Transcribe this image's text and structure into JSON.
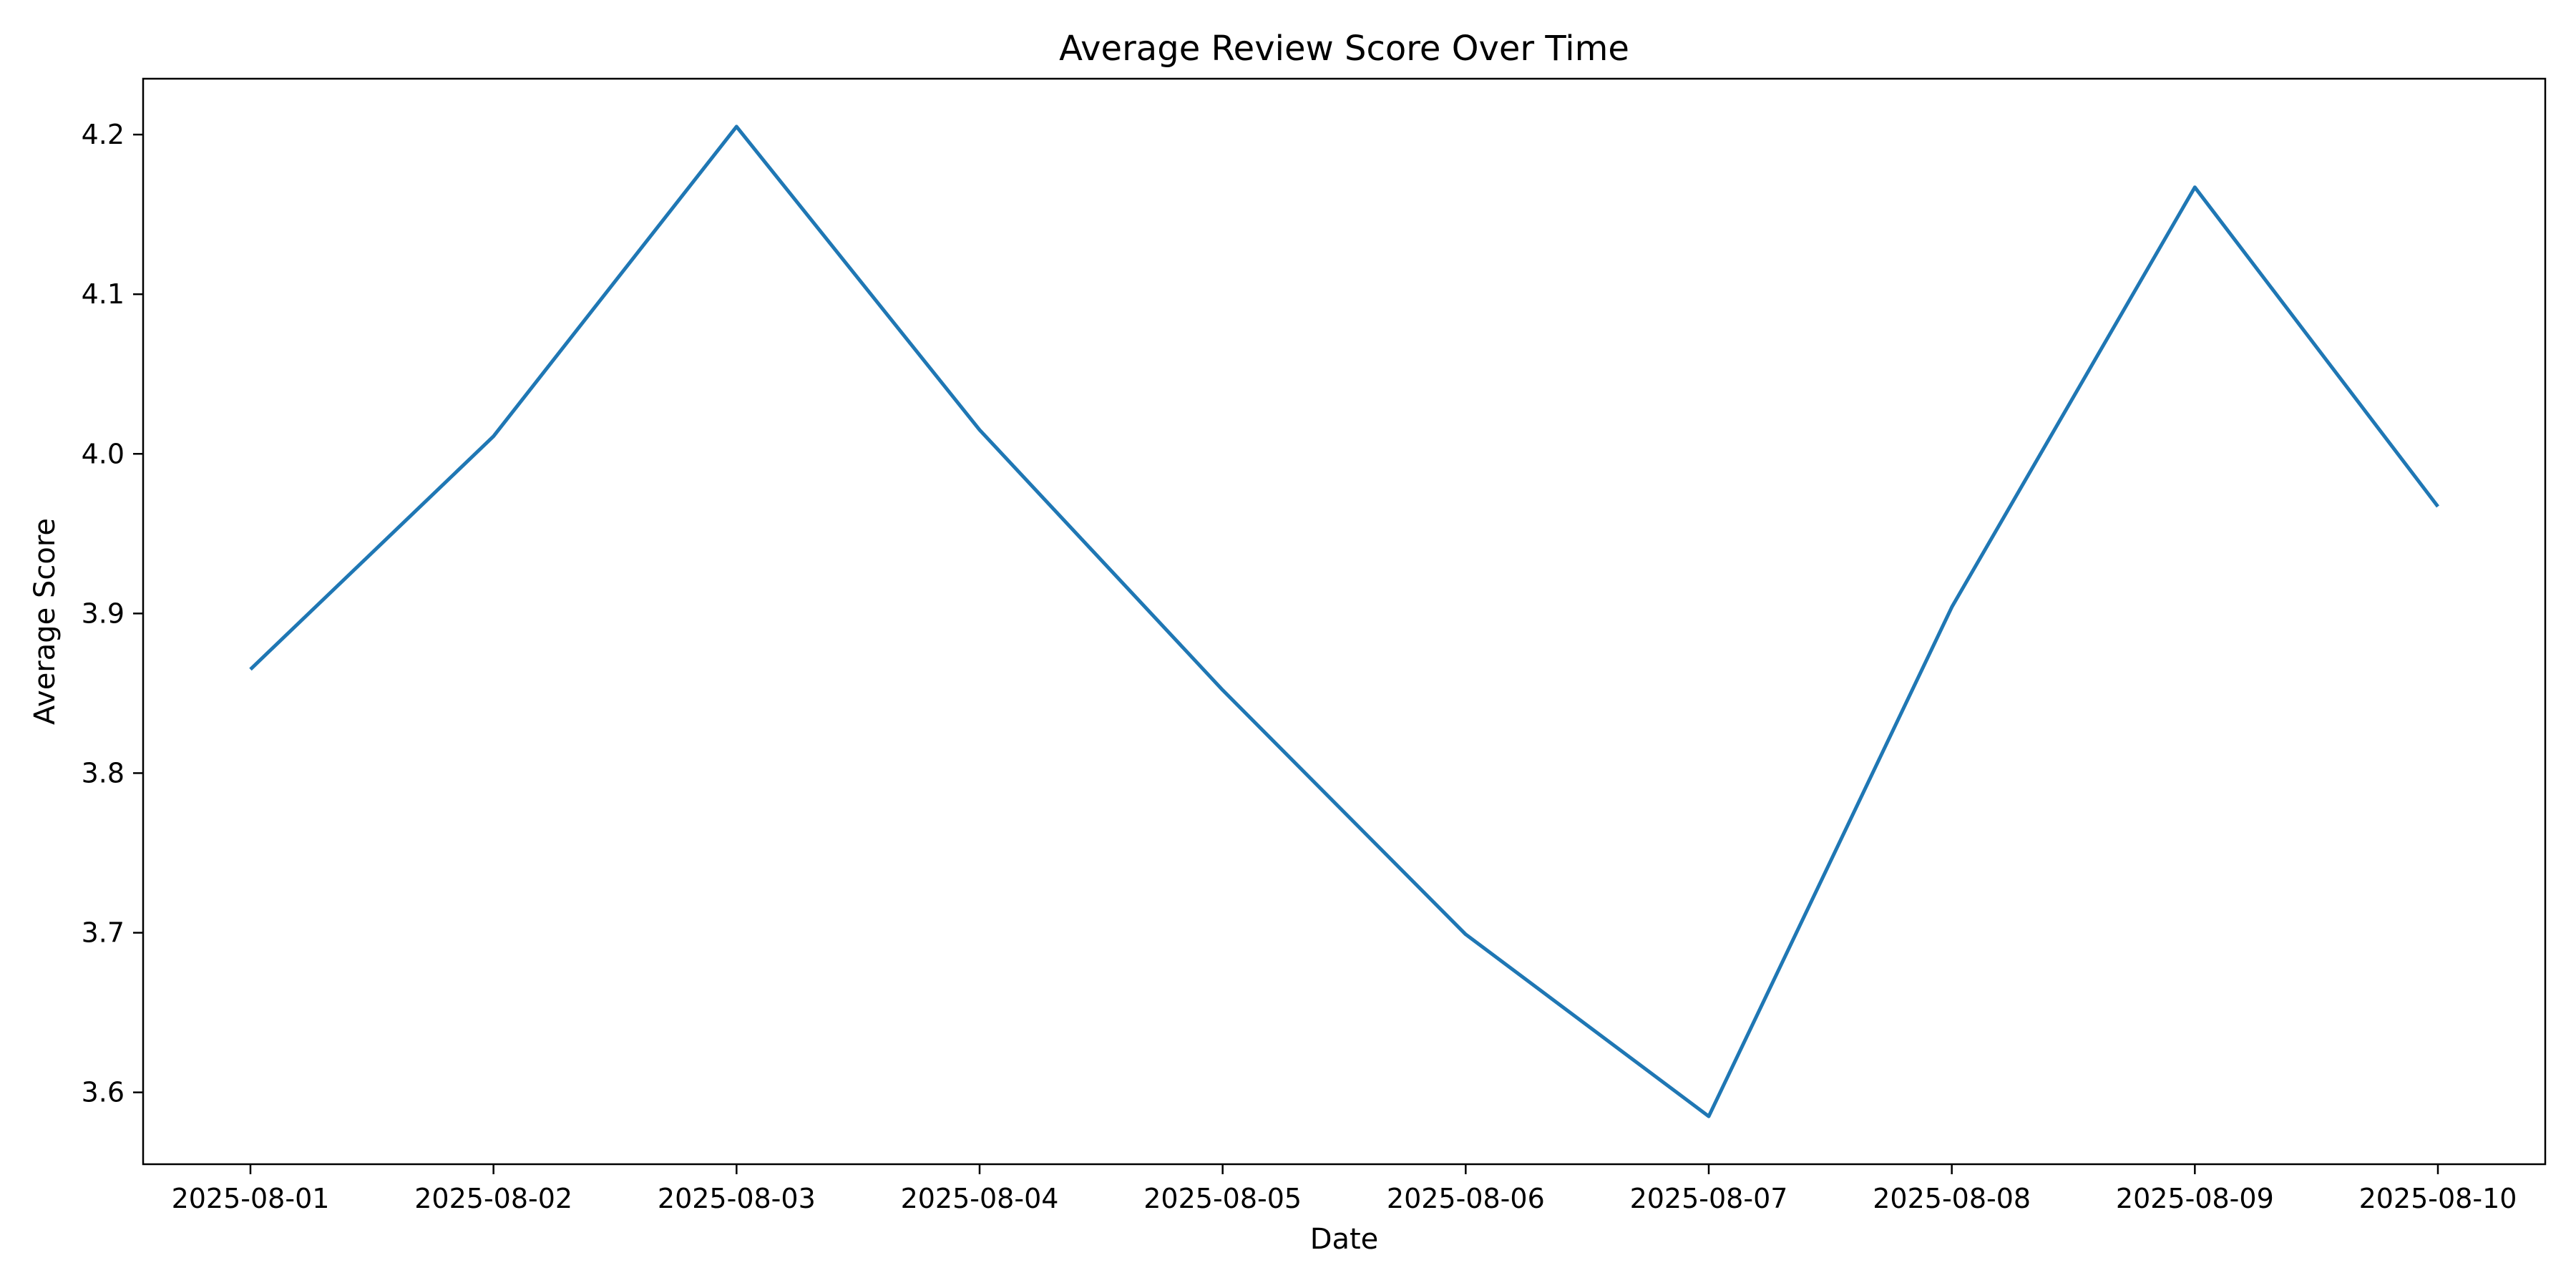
{
  "chart_data": {
    "type": "line",
    "title": "Average Review Score Over Time",
    "xlabel": "Date",
    "ylabel": "Average Score",
    "categories": [
      "2025-08-01",
      "2025-08-02",
      "2025-08-03",
      "2025-08-04",
      "2025-08-05",
      "2025-08-06",
      "2025-08-07",
      "2025-08-08",
      "2025-08-09",
      "2025-08-10"
    ],
    "series": [
      {
        "values": [
          3.865,
          4.011,
          4.205,
          4.015,
          3.852,
          3.699,
          3.585,
          3.904,
          4.167,
          3.967
        ],
        "color": "#1f77b4"
      }
    ],
    "ylim": [
      3.555,
      4.235
    ],
    "yticks": [
      3.6,
      3.7,
      3.8,
      3.9,
      4.0,
      4.1,
      4.2
    ],
    "ytick_labels": [
      "3.6",
      "3.7",
      "3.8",
      "3.9",
      "4.0",
      "4.1",
      "4.2"
    ],
    "grid": false,
    "legend": false
  }
}
